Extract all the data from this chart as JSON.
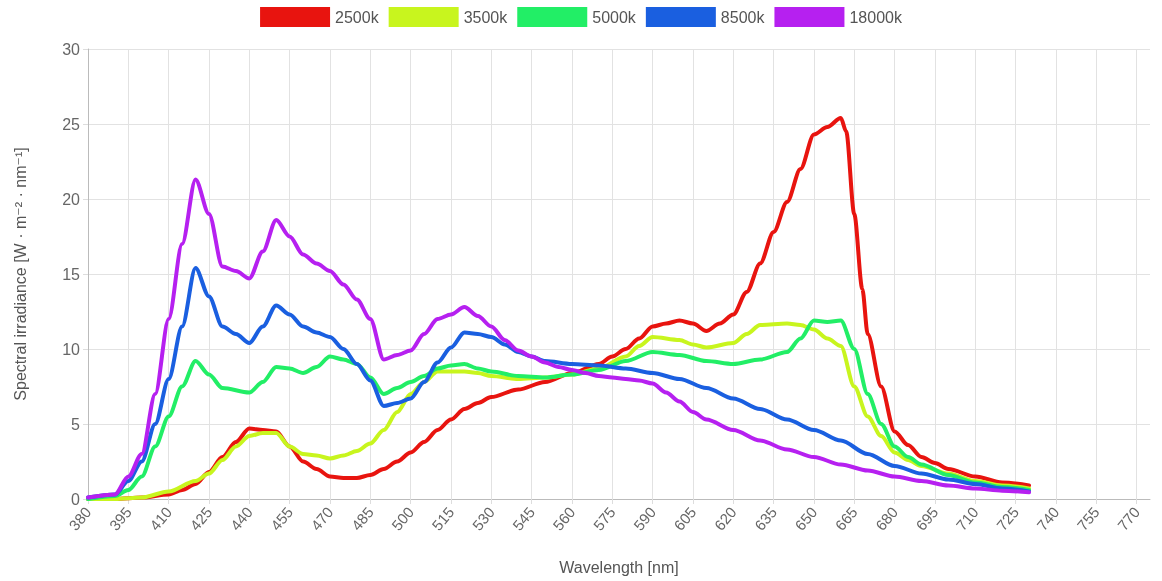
{
  "chart_data": {
    "type": "line",
    "xlabel": "Wavelength [nm]",
    "ylabel": "Spectral irradiance [W · m⁻² · nm⁻¹]",
    "xlim": [
      380,
      775
    ],
    "xticks": [
      380,
      395,
      410,
      425,
      440,
      455,
      470,
      485,
      500,
      515,
      530,
      545,
      560,
      575,
      590,
      605,
      620,
      635,
      650,
      665,
      680,
      695,
      710,
      725,
      740,
      755,
      770
    ],
    "ylim": [
      0,
      30
    ],
    "yticks": [
      0,
      5,
      10,
      15,
      20,
      25,
      30
    ],
    "grid": true,
    "legend": "top",
    "marker": "none",
    "line_style": "solid",
    "series": [
      {
        "name": "2500k",
        "color": "#e8140f",
        "x": [
          380,
          390,
          400,
          410,
          415,
          420,
          425,
          430,
          435,
          440,
          445,
          450,
          455,
          460,
          465,
          470,
          475,
          480,
          485,
          490,
          495,
          500,
          505,
          510,
          515,
          520,
          525,
          530,
          540,
          550,
          560,
          570,
          575,
          580,
          585,
          590,
          595,
          600,
          605,
          610,
          615,
          620,
          625,
          630,
          635,
          640,
          645,
          650,
          655,
          660,
          662,
          665,
          668,
          670,
          675,
          680,
          685,
          690,
          695,
          700,
          710,
          720,
          730
        ],
        "values": [
          0,
          0,
          0.1,
          0.3,
          0.6,
          1.0,
          1.8,
          2.8,
          3.8,
          4.7,
          4.6,
          4.5,
          3.5,
          2.5,
          2.0,
          1.5,
          1.4,
          1.4,
          1.6,
          2.0,
          2.5,
          3.1,
          3.8,
          4.6,
          5.3,
          6.0,
          6.4,
          6.8,
          7.3,
          7.8,
          8.4,
          9.0,
          9.5,
          10.0,
          10.7,
          11.5,
          11.7,
          11.9,
          11.7,
          11.2,
          11.7,
          12.3,
          13.8,
          15.7,
          17.8,
          19.8,
          22.0,
          24.3,
          24.8,
          25.4,
          24.5,
          19,
          14,
          11,
          7.5,
          4.5,
          3.6,
          2.8,
          2.4,
          2.0,
          1.5,
          1.1,
          0.9
        ]
      },
      {
        "name": "3500k",
        "color": "#c8f51e",
        "x": [
          380,
          390,
          400,
          410,
          420,
          425,
          430,
          435,
          440,
          445,
          450,
          455,
          460,
          465,
          470,
          475,
          480,
          485,
          490,
          495,
          500,
          505,
          510,
          515,
          520,
          525,
          530,
          540,
          550,
          560,
          570,
          580,
          585,
          590,
          600,
          605,
          610,
          620,
          625,
          630,
          640,
          645,
          650,
          655,
          660,
          665,
          670,
          675,
          680,
          685,
          690,
          700,
          710,
          720,
          730
        ],
        "values": [
          0,
          0,
          0.1,
          0.5,
          1.2,
          1.7,
          2.6,
          3.5,
          4.2,
          4.4,
          4.4,
          3.5,
          3.0,
          2.9,
          2.7,
          2.9,
          3.2,
          3.7,
          4.6,
          5.8,
          7.0,
          7.8,
          8.5,
          8.5,
          8.5,
          8.4,
          8.2,
          8.0,
          8.1,
          8.3,
          8.7,
          9.5,
          10.2,
          10.8,
          10.6,
          10.3,
          10.1,
          10.4,
          11.0,
          11.6,
          11.7,
          11.6,
          11.3,
          10.7,
          10.2,
          7.5,
          5.5,
          4.2,
          3.1,
          2.6,
          2.2,
          1.7,
          1.2,
          0.9,
          0.7
        ]
      },
      {
        "name": "5000k",
        "color": "#22ee66",
        "x": [
          380,
          390,
          395,
          400,
          405,
          410,
          415,
          420,
          425,
          430,
          440,
          445,
          450,
          455,
          460,
          465,
          470,
          475,
          480,
          485,
          490,
          495,
          500,
          505,
          510,
          515,
          520,
          525,
          530,
          540,
          550,
          560,
          570,
          580,
          590,
          600,
          610,
          620,
          630,
          640,
          645,
          650,
          655,
          660,
          665,
          670,
          675,
          680,
          685,
          690,
          700,
          710,
          720,
          730
        ],
        "values": [
          0,
          0.2,
          0.6,
          1.5,
          3.5,
          5.5,
          7.5,
          9.2,
          8.3,
          7.4,
          7.1,
          7.8,
          8.8,
          8.7,
          8.4,
          8.8,
          9.5,
          9.3,
          9.0,
          8.1,
          7.0,
          7.4,
          7.8,
          8.2,
          8.7,
          8.9,
          9.0,
          8.7,
          8.5,
          8.2,
          8.1,
          8.3,
          8.6,
          9.2,
          9.8,
          9.6,
          9.2,
          9.0,
          9.3,
          9.8,
          10.7,
          11.9,
          11.8,
          11.9,
          10,
          7.0,
          5.0,
          3.5,
          2.8,
          2.3,
          1.6,
          1.1,
          0.8,
          0.6
        ]
      },
      {
        "name": "8500k",
        "color": "#1a5fe0",
        "x": [
          380,
          390,
          395,
          400,
          405,
          410,
          415,
          420,
          425,
          430,
          435,
          440,
          445,
          450,
          455,
          460,
          465,
          470,
          475,
          480,
          485,
          490,
          495,
          500,
          505,
          510,
          515,
          520,
          525,
          530,
          535,
          540,
          545,
          550,
          560,
          570,
          580,
          590,
          600,
          610,
          620,
          630,
          640,
          650,
          660,
          670,
          680,
          690,
          700,
          710,
          720,
          730
        ],
        "values": [
          0.1,
          0.3,
          1.2,
          2.5,
          5,
          8,
          11.5,
          15.4,
          13.5,
          11.5,
          11,
          10.4,
          11.5,
          12.9,
          12.3,
          11.5,
          11.1,
          10.8,
          10.0,
          9.0,
          7.9,
          6.2,
          6.4,
          6.7,
          7.8,
          9.1,
          10.1,
          11.1,
          11.0,
          10.8,
          10.3,
          9.8,
          9.5,
          9.2,
          9.0,
          8.9,
          8.7,
          8.4,
          8.0,
          7.4,
          6.7,
          6.0,
          5.3,
          4.6,
          3.9,
          3.0,
          2.2,
          1.7,
          1.3,
          1.0,
          0.7,
          0.5
        ]
      },
      {
        "name": "18000k",
        "color": "#b620f0",
        "x": [
          380,
          390,
          395,
          400,
          405,
          410,
          415,
          420,
          425,
          430,
          435,
          440,
          445,
          450,
          455,
          460,
          465,
          470,
          475,
          480,
          485,
          490,
          495,
          500,
          505,
          510,
          515,
          520,
          525,
          530,
          535,
          540,
          545,
          550,
          555,
          560,
          565,
          570,
          575,
          580,
          585,
          590,
          595,
          600,
          605,
          610,
          620,
          630,
          640,
          650,
          660,
          670,
          680,
          690,
          700,
          710,
          720,
          730
        ],
        "values": [
          0.1,
          0.3,
          1.5,
          3,
          7,
          12,
          17,
          21.3,
          19,
          15.5,
          15.2,
          14.7,
          16.5,
          18.6,
          17.5,
          16.3,
          15.7,
          15.2,
          14.3,
          13.3,
          12,
          9.3,
          9.6,
          9.9,
          11,
          12,
          12.3,
          12.8,
          12.2,
          11.5,
          10.6,
          9.9,
          9.5,
          9.1,
          8.8,
          8.6,
          8.4,
          8.2,
          8.1,
          8.0,
          7.9,
          7.7,
          7.1,
          6.5,
          5.8,
          5.3,
          4.6,
          3.9,
          3.3,
          2.8,
          2.3,
          1.9,
          1.5,
          1.2,
          0.9,
          0.7,
          0.55,
          0.45
        ]
      }
    ]
  }
}
